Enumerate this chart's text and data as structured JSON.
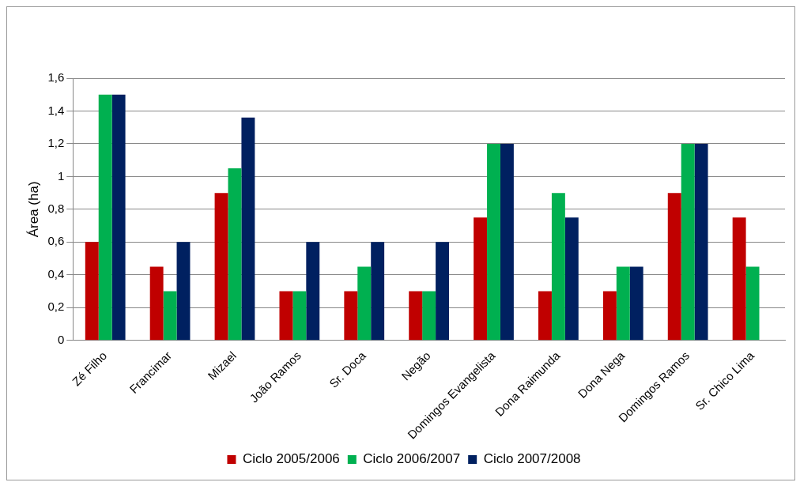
{
  "chart_data": {
    "type": "bar",
    "ylabel": "Área (ha)",
    "categories": [
      "Zé Filho",
      "Francimar",
      "Mizael",
      "João Ramos",
      "Sr. Doca",
      "Negão",
      "Domingos Evangelista",
      "Dona Raimunda",
      "Dona Nega",
      "Domingos Ramos",
      "Sr. Chico Lima"
    ],
    "series": [
      {
        "name": "Ciclo 2005/2006",
        "color": "#c00000",
        "values": [
          0.6,
          0.45,
          0.9,
          0.3,
          0.3,
          0.3,
          0.75,
          0.3,
          0.3,
          0.9,
          0.75
        ]
      },
      {
        "name": "Ciclo 2006/2007",
        "color": "#00b050",
        "values": [
          1.5,
          0.3,
          1.05,
          0.3,
          0.45,
          0.3,
          1.2,
          0.9,
          0.45,
          1.2,
          0.45
        ]
      },
      {
        "name": "Ciclo 2007/2008",
        "color": "#002060",
        "values": [
          1.5,
          0.6,
          1.36,
          0.6,
          0.6,
          0.6,
          1.2,
          0.75,
          0.45,
          1.2,
          null
        ]
      }
    ],
    "ylim": [
      0,
      1.6
    ],
    "yticks": [
      0,
      {
        "value": 0.2,
        "label": "0,2"
      },
      {
        "value": 0.4,
        "label": "0,4"
      },
      {
        "value": 0.6,
        "label": "0,6"
      },
      {
        "value": 0.8,
        "label": "0,8"
      },
      1,
      {
        "value": 1.2,
        "label": "1,2"
      },
      {
        "value": 1.4,
        "label": "1,4"
      },
      {
        "value": 1.6,
        "label": "1,6"
      }
    ],
    "grid": "y",
    "legend": "bottom"
  }
}
